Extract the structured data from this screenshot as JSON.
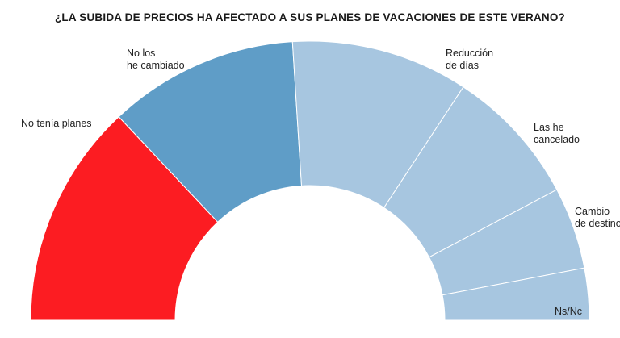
{
  "chart_data": {
    "type": "pie",
    "subtype": "half-donut",
    "title": "¿LA SUBIDA DE PRECIOS HA AFECTADO A SUS PLANES DE VACACIONES DE ESTE VERANO?",
    "categories": [
      "No tenía planes",
      "No los he cambiado",
      "Reducción de días",
      "Las he cancelado",
      "Cambio de destino",
      "Ns/Nc"
    ],
    "label_lines": [
      [
        "No tenía planes"
      ],
      [
        "No los",
        "he cambiado"
      ],
      [
        "Reducción",
        "de días"
      ],
      [
        "Las he",
        "cancelado"
      ],
      [
        "Cambio",
        "de destino"
      ],
      [
        "Ns/Nc"
      ]
    ],
    "values": [
      26.0,
      22.0,
      20.5,
      16.0,
      9.5,
      6.0
    ],
    "colors": [
      "#fc1c22",
      "#5f9dc7",
      "#a7c6e0",
      "#a7c6e0",
      "#a7c6e0",
      "#a7c6e0"
    ],
    "legend": "none"
  }
}
